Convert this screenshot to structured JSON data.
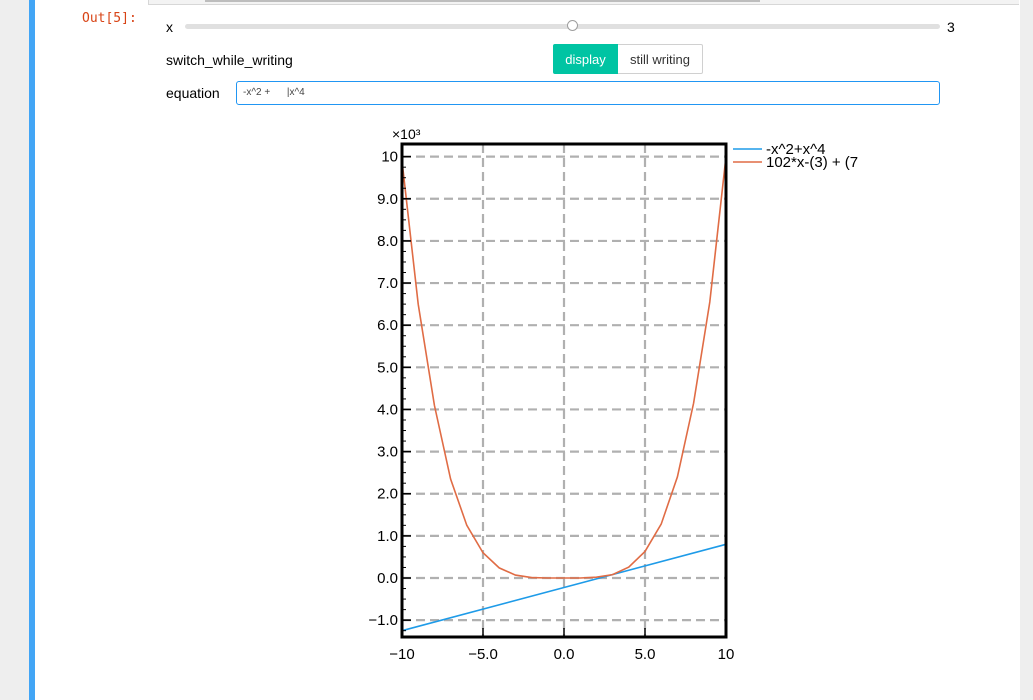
{
  "output": {
    "prompt": "Out[5]:"
  },
  "slider": {
    "label": "x",
    "value": "3",
    "min": -10,
    "max": 10,
    "current": 3
  },
  "toggle": {
    "label": "switch_while_writing",
    "options": [
      "display",
      "still writing"
    ],
    "selected": "display"
  },
  "equation": {
    "label": "equation",
    "value": "-x^2 +      |x^4"
  },
  "colors": {
    "accent": "#00c4a3",
    "cell_border": "#42a5f5",
    "prompt": "#d84315",
    "input_focus": "#2196f3"
  },
  "chart_data": {
    "type": "line",
    "scale_label": "×10³",
    "xlim": [
      -10,
      10
    ],
    "ylim": [
      -1.4,
      10.3
    ],
    "grid": true,
    "legend_position": "outside-top-right",
    "x_ticks": [
      -10,
      -5,
      0,
      5,
      10
    ],
    "x_tick_labels": [
      "−10",
      "−5.0",
      "0.0",
      "5.0",
      "10"
    ],
    "y_ticks": [
      -1,
      0,
      1,
      2,
      3,
      4,
      5,
      6,
      7,
      8,
      9,
      10
    ],
    "y_tick_labels": [
      "−1.0",
      "0.0",
      "1.0",
      "2.0",
      "3.0",
      "4.0",
      "5.0",
      "6.0",
      "7.0",
      "8.0",
      "9.0",
      "10"
    ],
    "series": [
      {
        "name": "-x^2+x^4",
        "color": "#1e9be8",
        "x": [
          -10,
          10
        ],
        "y": [
          -1.25,
          0.8
        ]
      },
      {
        "name": "102*x-(3) + (7",
        "color": "#e06c45",
        "x": [
          -10,
          -9,
          -8,
          -7,
          -6,
          -5,
          -4,
          -3,
          -2,
          -1,
          0,
          1,
          2,
          3,
          4,
          5,
          6,
          7,
          8,
          9,
          10
        ],
        "y": [
          9.9,
          6.5,
          4.1,
          2.35,
          1.25,
          0.6,
          0.24,
          0.07,
          0.01,
          0.0,
          0.0,
          0.0,
          0.02,
          0.08,
          0.26,
          0.63,
          1.28,
          2.4,
          4.15,
          6.55,
          10.0
        ]
      }
    ]
  }
}
